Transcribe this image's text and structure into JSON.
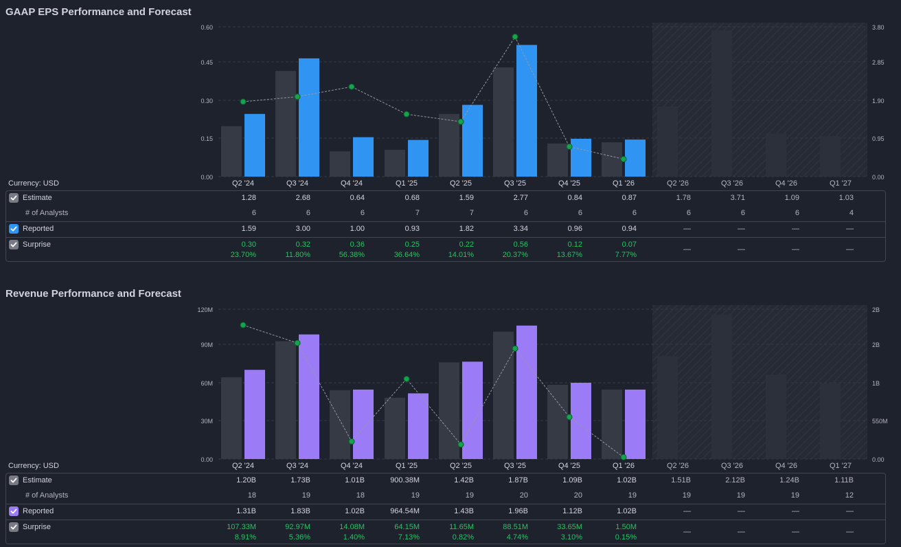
{
  "eps": {
    "title": "GAAP EPS Performance and Forecast",
    "currency": "Currency: USD",
    "quarters": [
      "Q2 '24",
      "Q3 '24",
      "Q4 '24",
      "Q1 '25",
      "Q2 '25",
      "Q3 '25",
      "Q4 '25",
      "Q1 '26",
      "Q2 '26",
      "Q3 '26",
      "Q4 '26",
      "Q1 '27"
    ],
    "left_ticks": [
      "0.60",
      "0.45",
      "0.30",
      "0.15",
      "0.00"
    ],
    "right_ticks": [
      "3.80",
      "2.85",
      "1.90",
      "0.95",
      "0.00"
    ],
    "estimate_label": "Estimate",
    "analysts_label": "# of Analysts",
    "reported_label": "Reported",
    "surprise_label": "Surprise",
    "estimates": [
      "1.28",
      "2.68",
      "0.64",
      "0.68",
      "1.59",
      "2.77",
      "0.84",
      "0.87",
      "1.78",
      "3.71",
      "1.09",
      "1.03"
    ],
    "analysts": [
      "6",
      "6",
      "6",
      "7",
      "7",
      "6",
      "6",
      "6",
      "6",
      "6",
      "6",
      "4"
    ],
    "reported": [
      "1.59",
      "3.00",
      "1.00",
      "0.93",
      "1.82",
      "3.34",
      "0.96",
      "0.94",
      "—",
      "—",
      "—",
      "—"
    ],
    "surprise": [
      "0.30",
      "0.32",
      "0.36",
      "0.25",
      "0.22",
      "0.56",
      "0.12",
      "0.07",
      "—",
      "—",
      "—",
      "—"
    ],
    "surprise_pct": [
      "23.70%",
      "11.80%",
      "56.38%",
      "36.64%",
      "14.01%",
      "20.37%",
      "13.67%",
      "7.77%",
      "",
      "",
      "",
      ""
    ]
  },
  "revenue": {
    "title": "Revenue Performance and Forecast",
    "currency": "Currency: USD",
    "quarters": [
      "Q2 '24",
      "Q3 '24",
      "Q4 '24",
      "Q1 '25",
      "Q2 '25",
      "Q3 '25",
      "Q4 '25",
      "Q1 '26",
      "Q2 '26",
      "Q3 '26",
      "Q4 '26",
      "Q1 '27"
    ],
    "left_ticks": [
      "120M",
      "90M",
      "60M",
      "30M",
      "0.00"
    ],
    "right_ticks": [
      "2B",
      "2B",
      "1B",
      "550M",
      "0.00"
    ],
    "estimate_label": "Estimate",
    "analysts_label": "# of Analysts",
    "reported_label": "Reported",
    "surprise_label": "Surprise",
    "estimates": [
      "1.20B",
      "1.73B",
      "1.01B",
      "900.38M",
      "1.42B",
      "1.87B",
      "1.09B",
      "1.02B",
      "1.51B",
      "2.12B",
      "1.24B",
      "1.11B"
    ],
    "analysts": [
      "18",
      "19",
      "18",
      "19",
      "19",
      "20",
      "20",
      "19",
      "19",
      "19",
      "19",
      "12"
    ],
    "reported": [
      "1.31B",
      "1.83B",
      "1.02B",
      "964.54M",
      "1.43B",
      "1.96B",
      "1.12B",
      "1.02B",
      "—",
      "—",
      "—",
      "—"
    ],
    "surprise": [
      "107.33M",
      "92.97M",
      "14.08M",
      "64.15M",
      "11.65M",
      "88.51M",
      "33.65M",
      "1.50M",
      "—",
      "—",
      "—",
      "—"
    ],
    "surprise_pct": [
      "8.91%",
      "5.36%",
      "1.40%",
      "7.13%",
      "0.82%",
      "4.74%",
      "3.10%",
      "0.15%",
      "",
      "",
      "",
      ""
    ]
  },
  "chart_data": [
    {
      "type": "bar",
      "title": "GAAP EPS Performance and Forecast",
      "categories": [
        "Q2 '24",
        "Q3 '24",
        "Q4 '24",
        "Q1 '25",
        "Q2 '25",
        "Q3 '25",
        "Q4 '25",
        "Q1 '26",
        "Q2 '26",
        "Q3 '26",
        "Q4 '26",
        "Q1 '27"
      ],
      "series": [
        {
          "name": "Estimate",
          "values": [
            1.28,
            2.68,
            0.64,
            0.68,
            1.59,
            2.77,
            0.84,
            0.87,
            1.78,
            3.71,
            1.09,
            1.03
          ]
        },
        {
          "name": "Reported",
          "values": [
            1.59,
            3.0,
            1.0,
            0.93,
            1.82,
            3.34,
            0.96,
            0.94,
            null,
            null,
            null,
            null
          ]
        },
        {
          "name": "Surprise",
          "values": [
            0.3,
            0.32,
            0.36,
            0.25,
            0.22,
            0.56,
            0.12,
            0.07,
            null,
            null,
            null,
            null
          ]
        }
      ],
      "ylim_right": [
        0,
        3.8
      ],
      "ylim_left": [
        0,
        0.6
      ],
      "colors": {
        "estimate": "#363a45",
        "reported": "#2f94f2",
        "surprise": "#14a44d",
        "forecast": "#2a2e39"
      }
    },
    {
      "type": "bar",
      "title": "Revenue Performance and Forecast",
      "categories": [
        "Q2 '24",
        "Q3 '24",
        "Q4 '24",
        "Q1 '25",
        "Q2 '25",
        "Q3 '25",
        "Q4 '25",
        "Q1 '26",
        "Q2 '26",
        "Q3 '26",
        "Q4 '26",
        "Q1 '27"
      ],
      "series": [
        {
          "name": "Estimate",
          "values": [
            1.2,
            1.73,
            1.01,
            0.90038,
            1.42,
            1.87,
            1.09,
            1.02,
            1.51,
            2.12,
            1.24,
            1.11
          ]
        },
        {
          "name": "Reported",
          "values": [
            1.31,
            1.83,
            1.02,
            0.96454,
            1.43,
            1.96,
            1.12,
            1.02,
            null,
            null,
            null,
            null
          ]
        },
        {
          "name": "Surprise",
          "values": [
            107.33,
            92.97,
            14.08,
            64.15,
            11.65,
            88.51,
            33.65,
            1.5,
            null,
            null,
            null,
            null
          ]
        }
      ],
      "ylim_right": [
        0,
        2.2
      ],
      "ylim_left": [
        0,
        120
      ],
      "colors": {
        "estimate": "#363a45",
        "reported": "#9b7cf6",
        "surprise": "#14a44d",
        "forecast": "#2a2e39"
      }
    }
  ]
}
